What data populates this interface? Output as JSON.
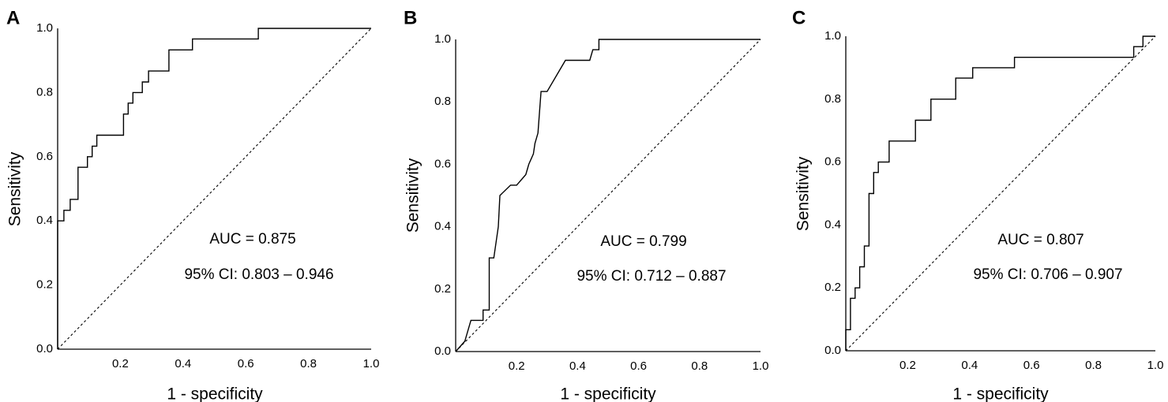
{
  "chart_data": [
    {
      "panel": "A",
      "type": "line",
      "xlabel": "1 - specificity",
      "ylabel": "Sensitivity",
      "xlim": [
        0,
        1
      ],
      "ylim": [
        0,
        1
      ],
      "x_ticks": [
        "0.2",
        "0.4",
        "0.6",
        "0.8",
        "1.0"
      ],
      "y_ticks": [
        "0.0",
        "0.2",
        "0.4",
        "0.6",
        "0.8",
        "1.0"
      ],
      "auc_text": "AUC = 0.875",
      "ci_text": "95% CI: 0.803 – 0.946",
      "series": [
        {
          "name": "ROC",
          "points": [
            [
              0,
              0
            ],
            [
              0,
              0.4
            ],
            [
              0.02,
              0.4
            ],
            [
              0.02,
              0.433
            ],
            [
              0.04,
              0.433
            ],
            [
              0.04,
              0.467
            ],
            [
              0.065,
              0.467
            ],
            [
              0.065,
              0.567
            ],
            [
              0.095,
              0.567
            ],
            [
              0.095,
              0.6
            ],
            [
              0.11,
              0.6
            ],
            [
              0.11,
              0.633
            ],
            [
              0.125,
              0.633
            ],
            [
              0.125,
              0.667
            ],
            [
              0.21,
              0.667
            ],
            [
              0.21,
              0.733
            ],
            [
              0.225,
              0.733
            ],
            [
              0.225,
              0.767
            ],
            [
              0.24,
              0.767
            ],
            [
              0.24,
              0.8
            ],
            [
              0.27,
              0.8
            ],
            [
              0.27,
              0.833
            ],
            [
              0.29,
              0.833
            ],
            [
              0.29,
              0.867
            ],
            [
              0.355,
              0.867
            ],
            [
              0.355,
              0.933
            ],
            [
              0.43,
              0.933
            ],
            [
              0.43,
              0.967
            ],
            [
              0.64,
              0.967
            ],
            [
              0.64,
              1.0
            ],
            [
              1.0,
              1.0
            ]
          ]
        },
        {
          "name": "reference",
          "points": [
            [
              0,
              0
            ],
            [
              1,
              1
            ]
          ]
        }
      ]
    },
    {
      "panel": "B",
      "type": "line",
      "xlabel": "1 - specificity",
      "ylabel": "Sensitivity",
      "xlim": [
        0,
        1
      ],
      "ylim": [
        0,
        1
      ],
      "x_ticks": [
        "0.2",
        "0.4",
        "0.6",
        "0.8",
        "1.0"
      ],
      "y_ticks": [
        "0.0",
        "0.2",
        "0.4",
        "0.6",
        "0.8",
        "1.0"
      ],
      "auc_text": "AUC = 0.799",
      "ci_text": "95% CI: 0.712 – 0.887",
      "series": [
        {
          "name": "ROC",
          "points": [
            [
              0,
              0
            ],
            [
              0.03,
              0.033
            ],
            [
              0.05,
              0.1
            ],
            [
              0.09,
              0.1
            ],
            [
              0.09,
              0.133
            ],
            [
              0.11,
              0.133
            ],
            [
              0.11,
              0.3
            ],
            [
              0.125,
              0.3
            ],
            [
              0.14,
              0.4
            ],
            [
              0.145,
              0.5
            ],
            [
              0.18,
              0.533
            ],
            [
              0.2,
              0.533
            ],
            [
              0.23,
              0.567
            ],
            [
              0.24,
              0.6
            ],
            [
              0.255,
              0.633
            ],
            [
              0.26,
              0.667
            ],
            [
              0.27,
              0.7
            ],
            [
              0.28,
              0.833
            ],
            [
              0.3,
              0.833
            ],
            [
              0.36,
              0.933
            ],
            [
              0.44,
              0.933
            ],
            [
              0.45,
              0.967
            ],
            [
              0.47,
              0.967
            ],
            [
              0.47,
              1.0
            ],
            [
              1.0,
              1.0
            ]
          ]
        },
        {
          "name": "reference",
          "points": [
            [
              0,
              0
            ],
            [
              1,
              1
            ]
          ]
        }
      ]
    },
    {
      "panel": "C",
      "type": "line",
      "xlabel": "1 - specificity",
      "ylabel": "Sensitivity",
      "xlim": [
        0,
        1
      ],
      "ylim": [
        0,
        1
      ],
      "x_ticks": [
        "0.2",
        "0.4",
        "0.6",
        "0.8",
        "1.0"
      ],
      "y_ticks": [
        "0.0",
        "0.2",
        "0.4",
        "0.6",
        "0.8",
        "1.0"
      ],
      "auc_text": "AUC = 0.807",
      "ci_text": "95% CI: 0.706 – 0.907",
      "series": [
        {
          "name": "ROC",
          "points": [
            [
              0,
              0
            ],
            [
              0,
              0.067
            ],
            [
              0.015,
              0.067
            ],
            [
              0.015,
              0.167
            ],
            [
              0.03,
              0.167
            ],
            [
              0.03,
              0.2
            ],
            [
              0.045,
              0.2
            ],
            [
              0.045,
              0.267
            ],
            [
              0.06,
              0.267
            ],
            [
              0.06,
              0.333
            ],
            [
              0.075,
              0.333
            ],
            [
              0.075,
              0.5
            ],
            [
              0.09,
              0.5
            ],
            [
              0.09,
              0.567
            ],
            [
              0.105,
              0.567
            ],
            [
              0.105,
              0.6
            ],
            [
              0.14,
              0.6
            ],
            [
              0.14,
              0.667
            ],
            [
              0.225,
              0.667
            ],
            [
              0.225,
              0.733
            ],
            [
              0.275,
              0.733
            ],
            [
              0.275,
              0.8
            ],
            [
              0.355,
              0.8
            ],
            [
              0.355,
              0.867
            ],
            [
              0.41,
              0.867
            ],
            [
              0.41,
              0.9
            ],
            [
              0.545,
              0.9
            ],
            [
              0.545,
              0.933
            ],
            [
              0.93,
              0.933
            ],
            [
              0.93,
              0.967
            ],
            [
              0.96,
              0.967
            ],
            [
              0.96,
              1.0
            ],
            [
              1.0,
              1.0
            ]
          ]
        },
        {
          "name": "reference",
          "points": [
            [
              0,
              0
            ],
            [
              1,
              1
            ]
          ]
        }
      ]
    }
  ]
}
